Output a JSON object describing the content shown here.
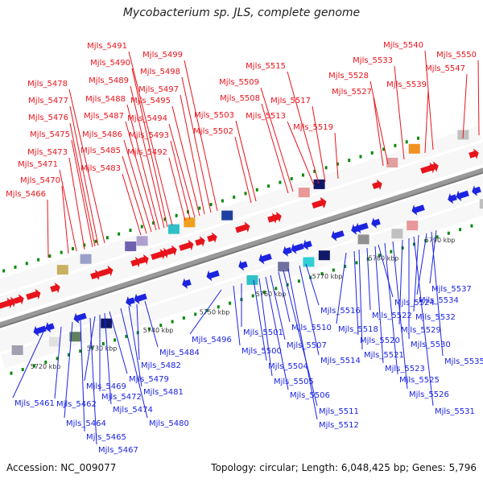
{
  "title": "Mycobacterium sp. JLS, complete genome",
  "footer": {
    "accession_label": "Accession:",
    "accession": "NC_009077",
    "topology_label": "Topology:",
    "topology": "circular",
    "length_label": "Length:",
    "length": "6,048,425 bp",
    "genes_label": "Genes:",
    "genes": "5,796"
  },
  "colors": {
    "forward_gene": "#e8141c",
    "reverse_gene": "#1c24e0",
    "backbone": "#999999",
    "tick_dot": "#0a8a0a"
  },
  "kbp_labels": [
    "5720 kbp",
    "5730 kbp",
    "5740 kbp",
    "5750 kbp",
    "5760 kbp",
    "5770 kbp",
    "5780 kbp",
    "5790 kbp"
  ],
  "forward_labels": [
    "Mjls_5466",
    "Mjls_5470",
    "Mjls_5471",
    "Mjls_5473",
    "Mjls_5475",
    "Mjls_5476",
    "Mjls_5477",
    "Mjls_5478",
    "Mjls_5483",
    "Mjls_5485",
    "Mjls_5486",
    "Mjls_5487",
    "Mjls_5488",
    "Mjls_5489",
    "Mjls_5490",
    "Mjls_5491",
    "Mjls_5492",
    "Mjls_5493",
    "Mjls_5494",
    "Mjls_5495",
    "Mjls_5497",
    "Mjls_5498",
    "Mjls_5499",
    "Mjls_5502",
    "Mjls_5503",
    "Mjls_5508",
    "Mjls_5509",
    "Mjls_5513",
    "Mjls_5515",
    "Mjls_5517",
    "Mjls_5519",
    "Mjls_5527",
    "Mjls_5528",
    "Mjls_5533",
    "Mjls_5539",
    "Mjls_5540",
    "Mjls_5547",
    "Mjls_5550"
  ],
  "reverse_labels": [
    "Mjls_5461",
    "Mjls_5462",
    "Mjls_5464",
    "Mjls_5465",
    "Mjls_5467",
    "Mjls_5469",
    "Mjls_5472",
    "Mjls_5474",
    "Mjls_5479",
    "Mjls_5480",
    "Mjls_5481",
    "Mjls_5482",
    "Mjls_5484",
    "Mjls_5496",
    "Mjls_5500",
    "Mjls_5501",
    "Mjls_5504",
    "Mjls_5505",
    "Mjls_5506",
    "Mjls_5507",
    "Mjls_5510",
    "Mjls_5511",
    "Mjls_5512",
    "Mjls_5514",
    "Mjls_5516",
    "Mjls_5518",
    "Mjls_5520",
    "Mjls_5521",
    "Mjls_5522",
    "Mjls_5523",
    "Mjls_5524",
    "Mjls_5525",
    "Mjls_5526",
    "Mjls_5529",
    "Mjls_5530",
    "Mjls_5531",
    "Mjls_5532",
    "Mjls_5534",
    "Mjls_5535",
    "Mjls_5537"
  ]
}
